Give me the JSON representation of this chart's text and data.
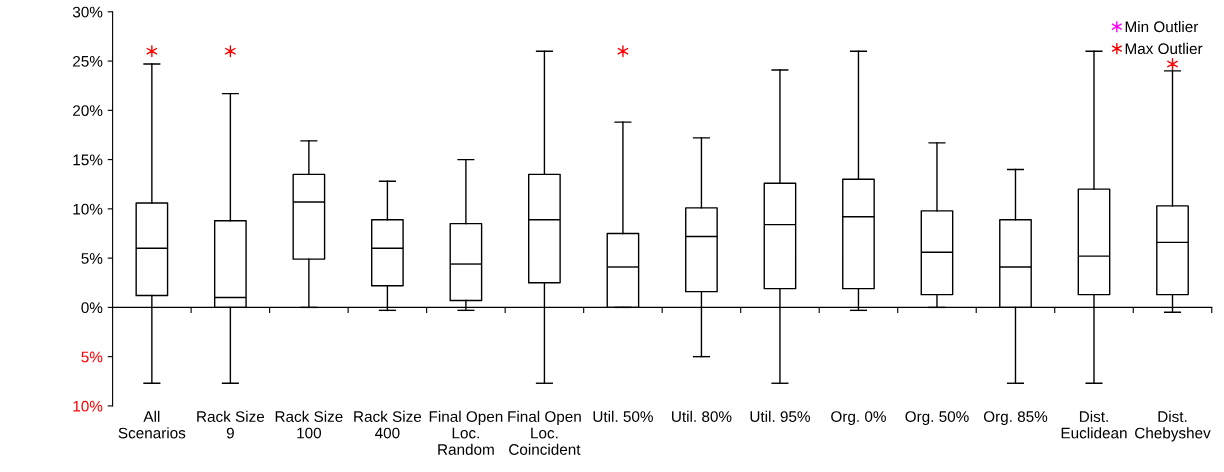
{
  "chart_data": {
    "type": "box",
    "categories": [
      "All\nScenarios",
      "Rack Size\n9",
      "Rack Size\n100",
      "Rack Size\n400",
      "Final Open\nLoc.\nRandom",
      "Final Open\nLoc.\nCoincident",
      "Util. 50%",
      "Util. 80%",
      "Util. 95%",
      "Org. 0%",
      "Org. 50%",
      "Org. 85%",
      "Dist.\nEuclidean",
      "Dist.\nChebyshev"
    ],
    "series": [
      {
        "color": "#000000",
        "boxes": [
          {
            "low": -7.7,
            "q1": 1.2,
            "median": 6.0,
            "q3": 10.6,
            "high": 24.7
          },
          {
            "low": -7.7,
            "q1": 0,
            "median": 1.0,
            "q3": 8.8,
            "high": 21.7
          },
          {
            "low": 0,
            "q1": 4.9,
            "median": 10.7,
            "q3": 13.5,
            "high": 16.9
          },
          {
            "low": -0.3,
            "q1": 2.2,
            "median": 6.0,
            "q3": 8.9,
            "high": 12.8
          },
          {
            "low": -0.3,
            "q1": 0.7,
            "median": 4.4,
            "q3": 8.5,
            "high": 15.0
          },
          {
            "low": -7.7,
            "q1": 2.5,
            "median": 8.9,
            "q3": 13.5,
            "high": 26.0
          },
          {
            "low": 0,
            "q1": 0,
            "median": 4.1,
            "q3": 7.5,
            "high": 18.8
          },
          {
            "low": -5.0,
            "q1": 1.6,
            "median": 7.2,
            "q3": 10.1,
            "high": 17.2
          },
          {
            "low": -7.7,
            "q1": 1.9,
            "median": 8.4,
            "q3": 12.6,
            "high": 24.1
          },
          {
            "low": -0.3,
            "q1": 1.9,
            "median": 9.2,
            "q3": 13.0,
            "high": 26.0
          },
          {
            "low": 0,
            "q1": 1.3,
            "median": 5.6,
            "q3": 9.8,
            "high": 16.7
          },
          {
            "low": -7.7,
            "q1": 0,
            "median": 4.1,
            "q3": 8.9,
            "high": 14.0
          },
          {
            "low": -7.7,
            "q1": 1.3,
            "median": 5.2,
            "q3": 12.0,
            "high": 26.0
          },
          {
            "low": -0.5,
            "q1": 1.3,
            "median": 6.6,
            "q3": 10.3,
            "high": 24.0
          }
        ]
      },
      {
        "type": "scatter",
        "name": "Min Outlier",
        "color": "#ff00ff",
        "values": [
          null,
          null,
          null,
          null,
          null,
          null,
          null,
          null,
          null,
          null,
          null,
          null,
          null,
          null
        ]
      },
      {
        "type": "scatter",
        "name": "Max Outlier",
        "color": "#ff0000",
        "values": [
          26.0,
          26.0,
          null,
          null,
          null,
          null,
          26.0,
          null,
          null,
          null,
          null,
          null,
          null,
          24.7
        ]
      }
    ],
    "marker": "cross",
    "ylim": [
      -10,
      30
    ],
    "yticks": [
      {
        "value": -10,
        "label": "10%"
      },
      {
        "value": -5,
        "label": "5%"
      },
      {
        "value": 0,
        "label": "0%"
      },
      {
        "value": 5,
        "label": "5%"
      },
      {
        "value": 10,
        "label": "10%"
      },
      {
        "value": 15,
        "label": "15%"
      },
      {
        "value": 20,
        "label": "20%"
      },
      {
        "value": 25,
        "label": "25%"
      },
      {
        "value": 30,
        "label": "30%"
      }
    ],
    "legend": "top right"
  }
}
